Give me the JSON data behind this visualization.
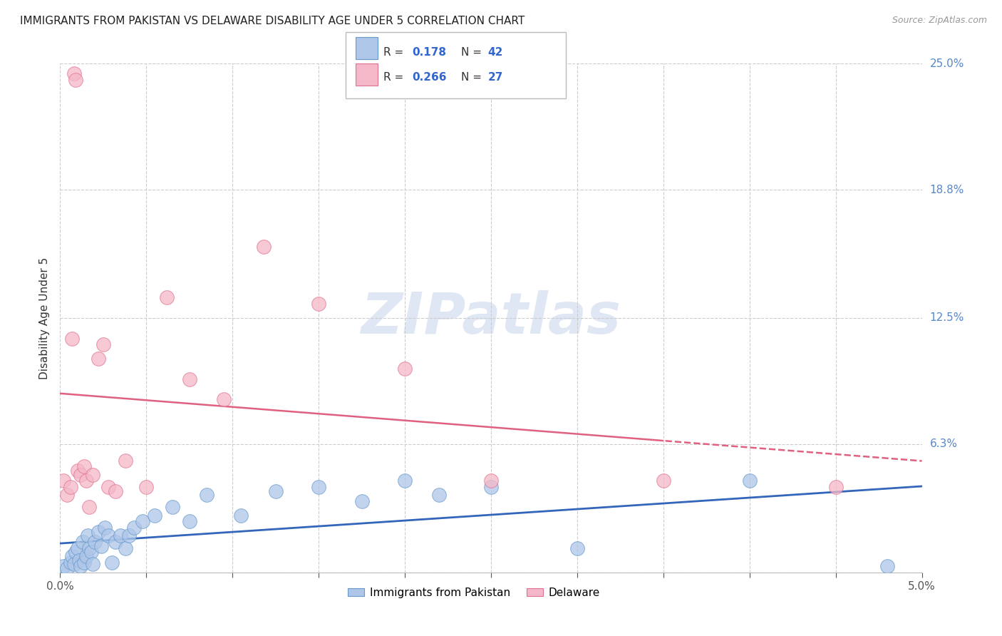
{
  "title": "IMMIGRANTS FROM PAKISTAN VS DELAWARE DISABILITY AGE UNDER 5 CORRELATION CHART",
  "source": "Source: ZipAtlas.com",
  "ylabel": "Disability Age Under 5",
  "xlim": [
    0.0,
    5.0
  ],
  "ylim": [
    0.0,
    25.0
  ],
  "right_yticks": [
    0.0,
    6.3,
    12.5,
    18.8,
    25.0
  ],
  "right_yticklabels": [
    "",
    "6.3%",
    "12.5%",
    "18.8%",
    "25.0%"
  ],
  "legend_r1": "0.178",
  "legend_n1": "42",
  "legend_r2": "0.266",
  "legend_n2": "27",
  "color_blue_fill": "#aec6e8",
  "color_blue_edge": "#6699cc",
  "color_pink_fill": "#f4b8c8",
  "color_pink_edge": "#e07090",
  "color_blue_line": "#3366bb",
  "color_pink_line": "#e06080",
  "color_legend_text": "#333333",
  "color_value": "#3366cc",
  "color_right_axis": "#5588cc",
  "watermark_color": "#ccd8ee",
  "grid_color": "#cccccc",
  "background_color": "#ffffff",
  "blue_scatter_x": [
    0.02,
    0.04,
    0.06,
    0.07,
    0.08,
    0.09,
    0.1,
    0.11,
    0.12,
    0.13,
    0.14,
    0.15,
    0.16,
    0.17,
    0.18,
    0.19,
    0.2,
    0.22,
    0.24,
    0.26,
    0.28,
    0.3,
    0.32,
    0.35,
    0.38,
    0.4,
    0.43,
    0.48,
    0.55,
    0.65,
    0.75,
    0.85,
    1.05,
    1.25,
    1.5,
    1.75,
    2.0,
    2.2,
    2.5,
    3.0,
    4.0,
    4.8
  ],
  "blue_scatter_y": [
    0.3,
    0.2,
    0.5,
    0.8,
    0.4,
    1.0,
    1.2,
    0.6,
    0.3,
    1.5,
    0.5,
    0.8,
    1.8,
    1.2,
    1.0,
    0.4,
    1.5,
    2.0,
    1.3,
    2.2,
    1.8,
    0.5,
    1.5,
    1.8,
    1.2,
    1.8,
    2.2,
    2.5,
    2.8,
    3.2,
    2.5,
    3.8,
    2.8,
    4.0,
    4.2,
    3.5,
    4.5,
    3.8,
    4.2,
    1.2,
    4.5,
    0.3
  ],
  "pink_scatter_x": [
    0.02,
    0.04,
    0.06,
    0.07,
    0.08,
    0.09,
    0.1,
    0.12,
    0.14,
    0.15,
    0.17,
    0.19,
    0.22,
    0.25,
    0.28,
    0.32,
    0.38,
    0.5,
    0.62,
    0.75,
    0.95,
    1.18,
    1.5,
    2.0,
    2.5,
    3.5,
    4.5
  ],
  "pink_scatter_y": [
    4.5,
    3.8,
    4.2,
    11.5,
    24.5,
    24.2,
    5.0,
    4.8,
    5.2,
    4.5,
    3.2,
    4.8,
    10.5,
    11.2,
    4.2,
    4.0,
    5.5,
    4.2,
    13.5,
    9.5,
    8.5,
    16.0,
    13.2,
    10.0,
    4.5,
    4.5,
    4.2
  ],
  "pink_solid_end": 3.5,
  "x_tickmarks": [
    0.0,
    0.5,
    1.0,
    1.5,
    2.0,
    2.5,
    3.0,
    3.5,
    4.0,
    4.5,
    5.0
  ]
}
